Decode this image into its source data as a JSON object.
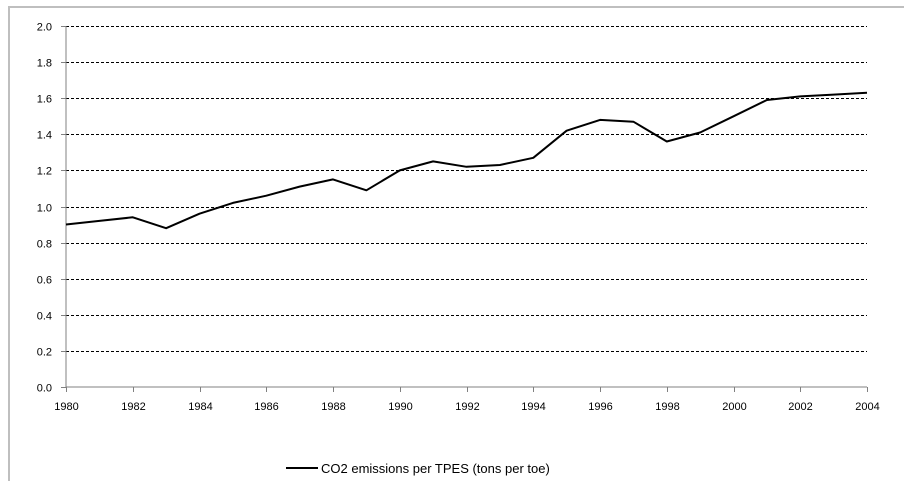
{
  "chart_data": {
    "type": "line",
    "title": "",
    "xlabel": "",
    "ylabel": "",
    "xlim": [
      1980,
      2004
    ],
    "ylim": [
      0,
      2.0
    ],
    "x_ticks": [
      "1980",
      "1982",
      "1984",
      "1986",
      "1988",
      "1990",
      "1992",
      "1994",
      "1996",
      "1998",
      "2000",
      "2002",
      "2004"
    ],
    "y_ticks": [
      "0.0",
      "0.2",
      "0.4",
      "0.6",
      "0.8",
      "1.0",
      "1.2",
      "1.4",
      "1.6",
      "1.8",
      "2.0"
    ],
    "grid": "horizontal-dashed",
    "legend_position": "bottom",
    "series": [
      {
        "name": "CO2 emissions per TPES (tons per toe)",
        "color": "#000000",
        "x": [
          1980,
          1981,
          1982,
          1983,
          1984,
          1985,
          1986,
          1987,
          1988,
          1989,
          1990,
          1991,
          1992,
          1993,
          1994,
          1995,
          1996,
          1997,
          1998,
          1999,
          2000,
          2001,
          2002,
          2003,
          2004
        ],
        "values": [
          0.9,
          0.92,
          0.94,
          0.88,
          0.96,
          1.02,
          1.06,
          1.11,
          1.15,
          1.09,
          1.2,
          1.25,
          1.22,
          1.23,
          1.27,
          1.42,
          1.48,
          1.47,
          1.36,
          1.41,
          1.5,
          1.59,
          1.61,
          1.62,
          1.63
        ]
      }
    ]
  }
}
